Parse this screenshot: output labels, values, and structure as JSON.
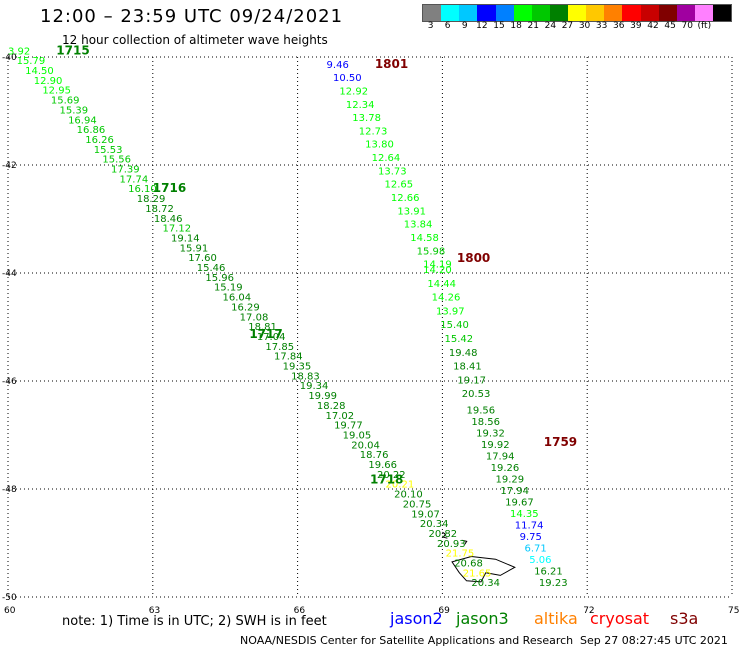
{
  "header": {
    "title": "12:00 – 23:59 UTC 09/24/2021",
    "subtitle": "12 hour collection of altimeter wave heights"
  },
  "color_scale": {
    "colors": [
      "#808080",
      "#00ffff",
      "#00c8ff",
      "#0000ff",
      "#0080ff",
      "#00ff00",
      "#00c800",
      "#008000",
      "#ffff00",
      "#ffc800",
      "#ff8000",
      "#ff0000",
      "#c80000",
      "#800000",
      "#a000a0",
      "#ff80ff",
      "#000000"
    ],
    "labels": [
      "3",
      "6",
      "9",
      "12",
      "15",
      "18",
      "21",
      "24",
      "27",
      "30",
      "33",
      "36",
      "39",
      "42",
      "45",
      "70",
      "(ft)"
    ]
  },
  "axes": {
    "x_labels": [
      "60",
      "63",
      "66",
      "69",
      "72",
      "75"
    ],
    "y_labels": [
      "-40",
      "-42",
      "-44",
      "-46",
      "-48",
      "-50"
    ]
  },
  "chart_data": {
    "type": "scatter",
    "xlim": [
      60,
      75
    ],
    "ylim": [
      -50,
      -40
    ],
    "grid": true,
    "tracks": [
      {
        "time": "1715",
        "time_at": [
          61.0,
          -39.95
        ],
        "time_color": "#008000",
        "start": [
          60.0,
          -39.95
        ],
        "end": [
          69.6,
          -49.8
        ],
        "labels": [
          "3.92",
          "15.79",
          "14.50",
          "12.90",
          "12.95",
          "15.69",
          "15.39",
          "16.94",
          "16.86",
          "16.26",
          "15.53",
          "15.56",
          "17.39",
          "17.74",
          "16.10",
          "18.29",
          "18.72",
          "18.46",
          "17.12",
          "19.14",
          "15.91",
          "17.60",
          "15.46",
          "15.96",
          "15.19",
          "16.04",
          "16.29",
          "17.08",
          "18.81",
          "17.04",
          "17.85",
          "17.84",
          "19.35",
          "18.83",
          "19.34",
          "19.99",
          "18.28",
          "17.02",
          "19.77",
          "19.05",
          "20.04",
          "18.76",
          "19.66",
          "20.22",
          "20.21",
          "20.10",
          "20.75",
          "19.07",
          "20.34",
          "20.82",
          "20.93",
          "21.75",
          "20.68",
          "21.65",
          "20.34"
        ],
        "colors": [
          "#00ff00",
          "#00ff00",
          "#00ff00",
          "#00ff00",
          "#00ff00",
          "#00c800",
          "#00c800",
          "#00c800",
          "#00c800",
          "#00c800",
          "#00c800",
          "#00c800",
          "#00c800",
          "#00c800",
          "#00c800",
          "#008000",
          "#008000",
          "#008000",
          "#00c800",
          "#008000",
          "#008000",
          "#008000",
          "#008000",
          "#008000",
          "#008000",
          "#008000",
          "#008000",
          "#008000",
          "#008000",
          "#008000",
          "#008000",
          "#008000",
          "#008000",
          "#008000",
          "#008000",
          "#008000",
          "#008000",
          "#008000",
          "#008000",
          "#008000",
          "#008000",
          "#008000",
          "#008000",
          "#008000",
          "#ffff00",
          "#008000",
          "#008000",
          "#008000",
          "#008000",
          "#008000",
          "#008000",
          "#ffff00",
          "#008000",
          "#ffff00",
          "#008000"
        ]
      },
      {
        "time": "1801",
        "time_at": [
          67.6,
          -40.2
        ],
        "time_color": "#800000",
        "start": [
          66.6,
          -40.2
        ],
        "end": [
          68.6,
          -43.9
        ],
        "labels": [
          "9.46",
          "10.50",
          "12.92",
          "12.34",
          "13.78",
          "12.73",
          "13.80",
          "12.64",
          "13.73",
          "12.65",
          "12.66",
          "13.91",
          "13.84",
          "14.58",
          "15.98",
          "14.19"
        ],
        "colors": [
          "#0000ff",
          "#0000ff",
          "#00ff00",
          "#00ff00",
          "#00ff00",
          "#00ff00",
          "#00ff00",
          "#00ff00",
          "#00ff00",
          "#00ff00",
          "#00ff00",
          "#00ff00",
          "#00ff00",
          "#00ff00",
          "#00c800",
          "#00ff00"
        ]
      },
      {
        "time": "1800",
        "time_at": [
          69.3,
          -43.8
        ],
        "time_color": "#800000",
        "start": [
          68.6,
          -44.0
        ],
        "end": [
          69.4,
          -46.3
        ],
        "labels": [
          "14.20",
          "14.44",
          "14.26",
          "13.97",
          "15.40",
          "15.42",
          "19.48",
          "18.41",
          "19.17",
          "20.53"
        ],
        "colors": [
          "#00ff00",
          "#00ff00",
          "#00ff00",
          "#00ff00",
          "#00c800",
          "#00c800",
          "#008000",
          "#008000",
          "#008000",
          "#008000"
        ]
      },
      {
        "time": "1759",
        "time_at": [
          71.1,
          -47.2
        ],
        "time_color": "#800000",
        "start": [
          69.5,
          -46.6
        ],
        "end": [
          71.0,
          -49.8
        ],
        "labels": [
          "19.56",
          "18.56",
          "19.32",
          "19.92",
          "17.94",
          "19.26",
          "19.29",
          "17.94",
          "19.67",
          "14.35",
          "11.74",
          "9.75",
          "6.71",
          "5.06",
          "16.21",
          "19.23"
        ],
        "colors": [
          "#008000",
          "#008000",
          "#008000",
          "#008000",
          "#008000",
          "#008000",
          "#008000",
          "#008000",
          "#008000",
          "#00ff00",
          "#0000ff",
          "#0000ff",
          "#00c8ff",
          "#00ffff",
          "#008000",
          "#008000"
        ]
      }
    ],
    "extra_time_labels": [
      {
        "text": "1716",
        "at": [
          63.0,
          -42.5
        ],
        "color": "#008000"
      },
      {
        "text": "1717",
        "at": [
          65.0,
          -45.2
        ],
        "color": "#008000"
      },
      {
        "text": "1718",
        "at": [
          67.5,
          -47.9
        ],
        "color": "#008000"
      }
    ]
  },
  "footer": {
    "note": "note:  1) Time is in UTC;  2) SWH is in feet",
    "legend": [
      {
        "name": "jason2",
        "color": "#0000ff"
      },
      {
        "name": "jason3",
        "color": "#008000"
      },
      {
        "name": "altika",
        "color": "#ff8000"
      },
      {
        "name": "cryosat",
        "color": "#ff0000"
      },
      {
        "name": "s3a",
        "color": "#800000"
      }
    ],
    "credit_center": "NOAA/NESDIS Center for Satellite Applications and Research",
    "credit_time": "Sep 27 08:27:45 UTC 2021"
  }
}
